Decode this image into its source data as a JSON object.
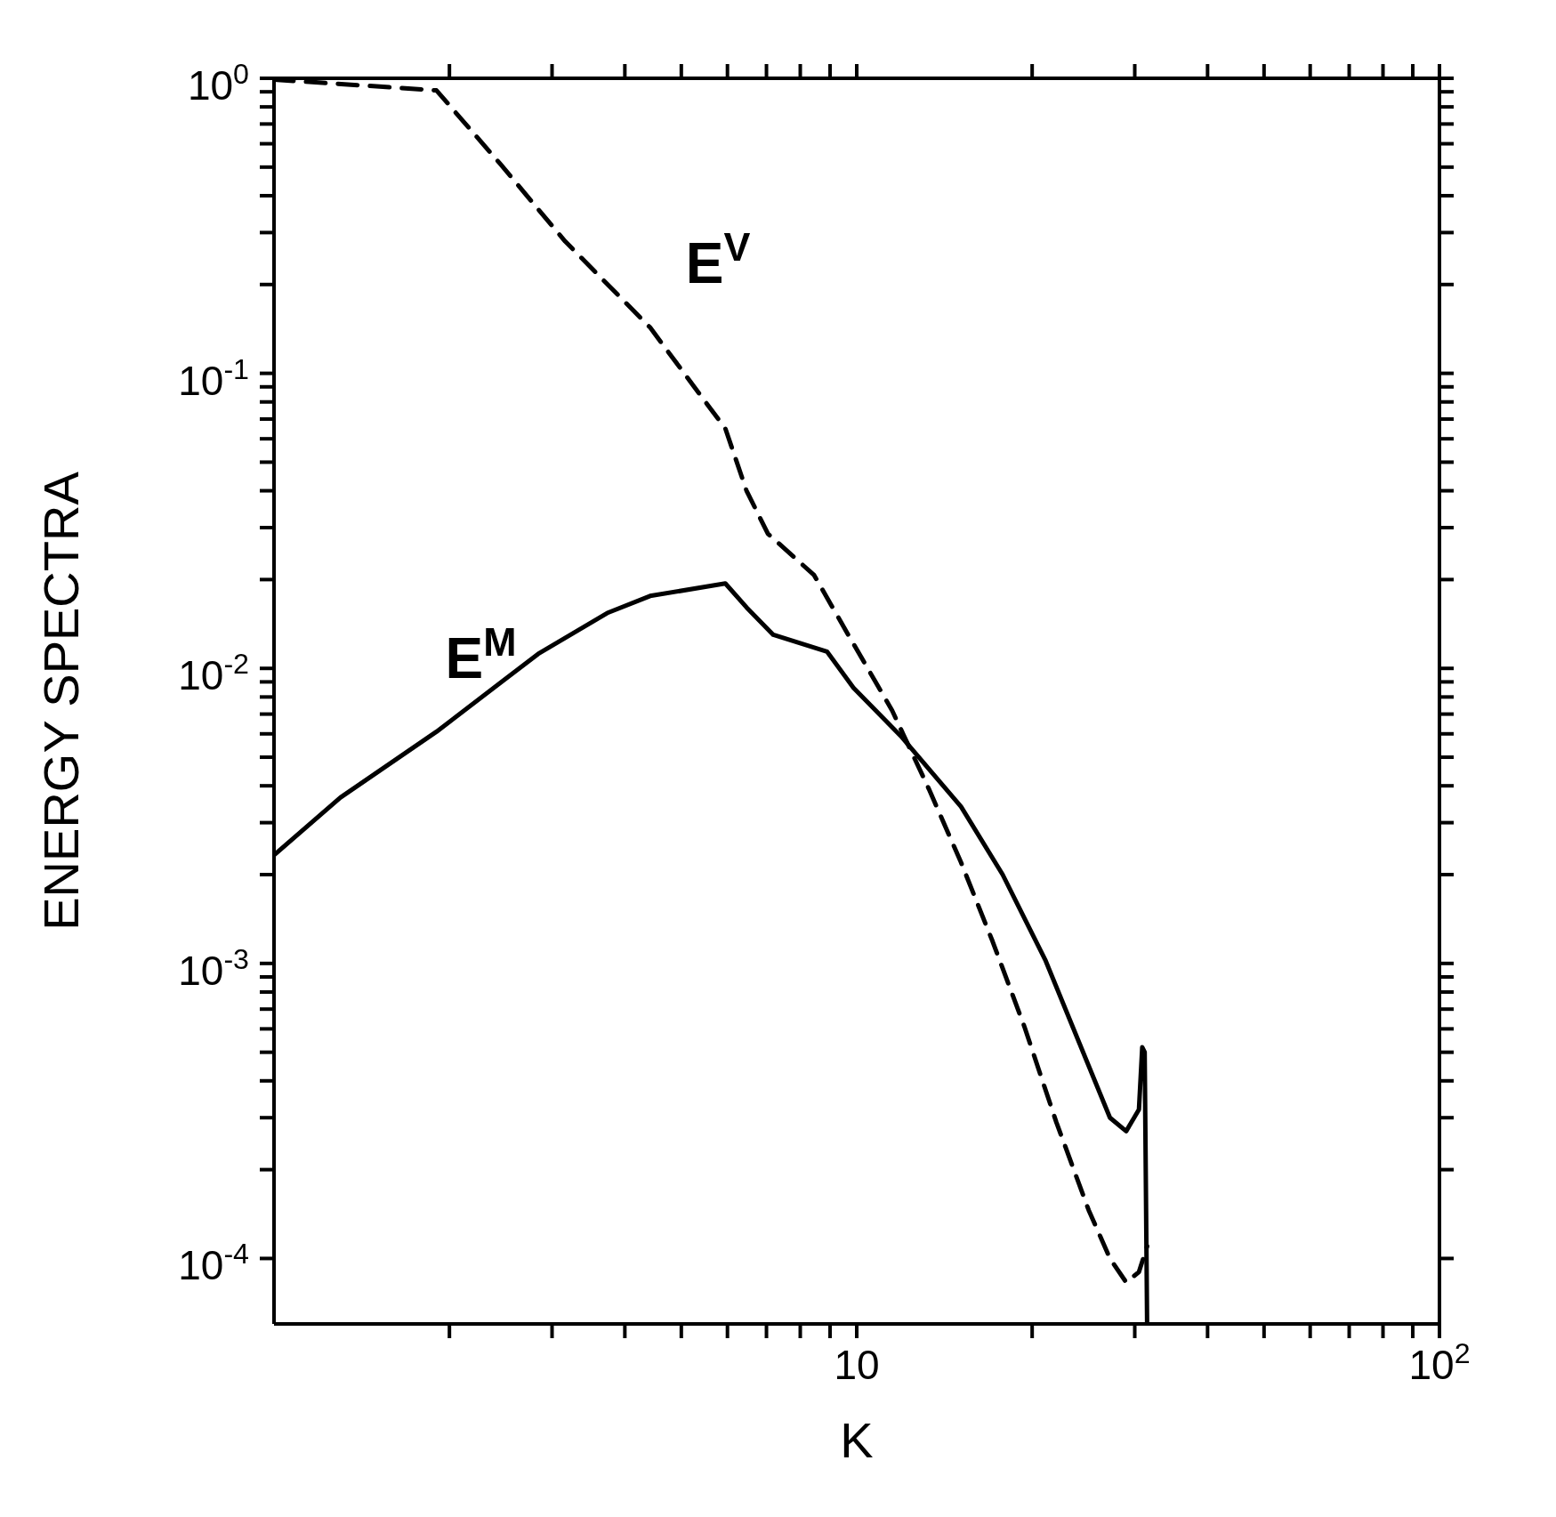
{
  "chart_data": {
    "type": "line",
    "xlabel": "K",
    "ylabel": "ENERGY SPECTRA",
    "log": "xy",
    "marker": "none",
    "grid": false,
    "legend": false,
    "xlim": [
      1,
      100
    ],
    "ylim": [
      6e-05,
      1
    ],
    "xticks": [
      {
        "value": 2,
        "label": null
      },
      {
        "value": 3,
        "label": null
      },
      {
        "value": 4,
        "label": null
      },
      {
        "value": 5,
        "label": null
      },
      {
        "value": 6,
        "label": null
      },
      {
        "value": 7,
        "label": null
      },
      {
        "value": 8,
        "label": null
      },
      {
        "value": 9,
        "label": null
      },
      {
        "value": 10,
        "label": "10"
      },
      {
        "value": 20,
        "label": null
      },
      {
        "value": 30,
        "label": null
      },
      {
        "value": 40,
        "label": null
      },
      {
        "value": 50,
        "label": null
      },
      {
        "value": 60,
        "label": null
      },
      {
        "value": 70,
        "label": null
      },
      {
        "value": 80,
        "label": null
      },
      {
        "value": 90,
        "label": null
      },
      {
        "value": 100,
        "label": "10$^{2}$"
      }
    ],
    "yticks": [
      {
        "value": 0.0001,
        "label": "10$^{-4}$"
      },
      {
        "value": 0.0002,
        "label": null
      },
      {
        "value": 0.0003,
        "label": null
      },
      {
        "value": 0.0004,
        "label": null
      },
      {
        "value": 0.0005,
        "label": null
      },
      {
        "value": 0.0006,
        "label": null
      },
      {
        "value": 0.0007,
        "label": null
      },
      {
        "value": 0.0008,
        "label": null
      },
      {
        "value": 0.0009,
        "label": null
      },
      {
        "value": 0.001,
        "label": "10$^{-3}$"
      },
      {
        "value": 0.002,
        "label": null
      },
      {
        "value": 0.003,
        "label": null
      },
      {
        "value": 0.004,
        "label": null
      },
      {
        "value": 0.005,
        "label": null
      },
      {
        "value": 0.006,
        "label": null
      },
      {
        "value": 0.007,
        "label": null
      },
      {
        "value": 0.008,
        "label": null
      },
      {
        "value": 0.009,
        "label": null
      },
      {
        "value": 0.01,
        "label": "10$^{-2}$"
      },
      {
        "value": 0.02,
        "label": null
      },
      {
        "value": 0.03,
        "label": null
      },
      {
        "value": 0.04,
        "label": null
      },
      {
        "value": 0.05,
        "label": null
      },
      {
        "value": 0.06,
        "label": null
      },
      {
        "value": 0.07,
        "label": null
      },
      {
        "value": 0.08,
        "label": null
      },
      {
        "value": 0.09,
        "label": null
      },
      {
        "value": 0.1,
        "label": "10$^{-1}$"
      },
      {
        "value": 0.2,
        "label": null
      },
      {
        "value": 0.3,
        "label": null
      },
      {
        "value": 0.4,
        "label": null
      },
      {
        "value": 0.5,
        "label": null
      },
      {
        "value": 0.6,
        "label": null
      },
      {
        "value": 0.7,
        "label": null
      },
      {
        "value": 0.8,
        "label": null
      },
      {
        "value": 0.9,
        "label": null
      },
      {
        "value": 1,
        "label": "10$^{0}$"
      }
    ],
    "series": [
      {
        "name": "E$^{V}$",
        "color": "#000000",
        "line_style": "dashed",
        "x": [
          1,
          1.9,
          2.45,
          3.16,
          4.42,
          5.24,
          5.95,
          6.47,
          7.04,
          8.45,
          9.67,
          11.5,
          13.3,
          15.1,
          17.1,
          19.4,
          22,
          25,
          27.2,
          29,
          30.5,
          31.5
        ],
        "values": [
          0.99,
          0.91,
          0.51,
          0.28,
          0.143,
          0.091,
          0.065,
          0.04,
          0.0286,
          0.0207,
          0.013,
          0.0072,
          0.0039,
          0.0022,
          0.00119,
          0.00061,
          0.00029,
          0.000146,
          0.0001,
          8.3e-05,
          9e-05,
          0.00011
        ]
      },
      {
        "name": "E$^{M}$",
        "color": "#000000",
        "line_style": "solid",
        "x": [
          1,
          1.3,
          1.9,
          2.84,
          3.73,
          4.42,
          5.95,
          6.47,
          7.19,
          8.89,
          9.87,
          11.9,
          15.1,
          17.8,
          21.1,
          25,
          27.2,
          29,
          30.5,
          30.9,
          31.2,
          31.5
        ],
        "values": [
          0.00233,
          0.00365,
          0.0061,
          0.0112,
          0.0154,
          0.0176,
          0.0194,
          0.0161,
          0.013,
          0.0114,
          0.0086,
          0.0059,
          0.0034,
          0.002,
          0.00102,
          0.00045,
          0.0003,
          0.00027,
          0.00032,
          0.00052,
          0.0005,
          6e-05
        ]
      }
    ]
  }
}
